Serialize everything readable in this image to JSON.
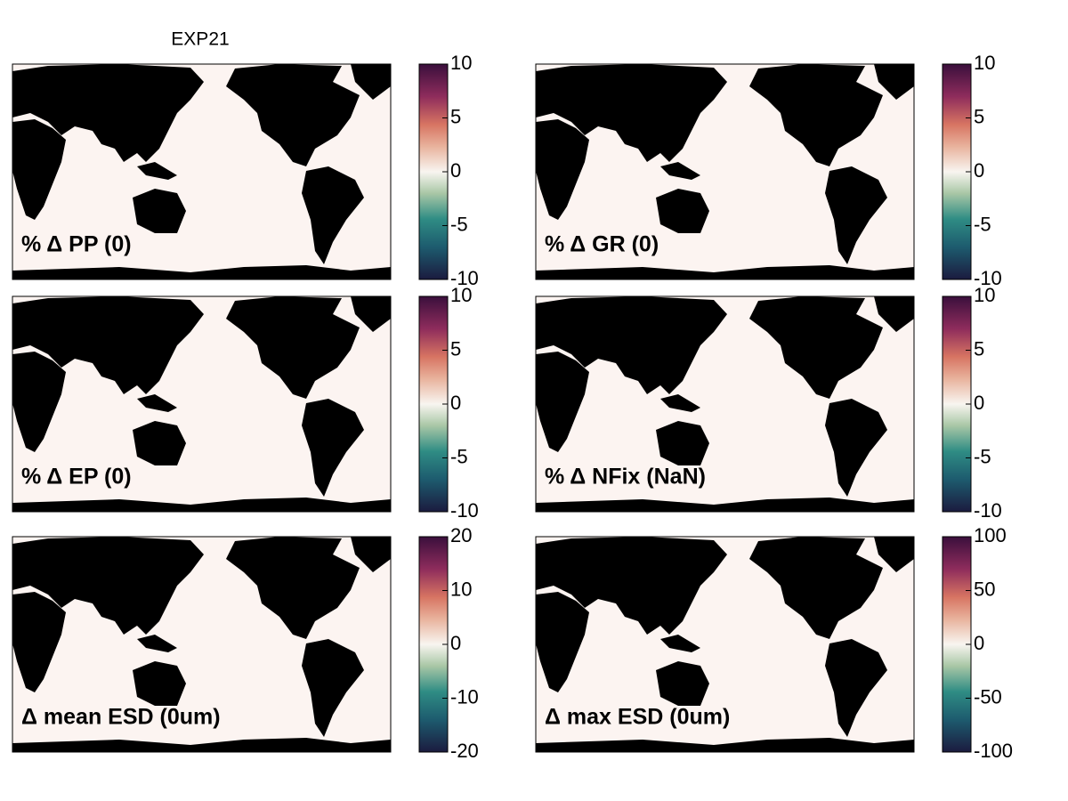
{
  "title": "EXP21",
  "panels": [
    {
      "label": "% Δ PP (0)",
      "colorbar": {
        "lim": [
          -10,
          10
        ],
        "ticks": [
          10,
          5,
          0,
          -5,
          -10
        ]
      }
    },
    {
      "label": "% Δ GR (0)",
      "colorbar": {
        "lim": [
          -10,
          10
        ],
        "ticks": [
          10,
          5,
          0,
          -5,
          -10
        ]
      }
    },
    {
      "label": "% Δ EP (0)",
      "colorbar": {
        "lim": [
          -10,
          10
        ],
        "ticks": [
          10,
          5,
          0,
          -5,
          -10
        ]
      }
    },
    {
      "label": "% Δ NFix (NaN)",
      "colorbar": {
        "lim": [
          -10,
          10
        ],
        "ticks": [
          10,
          5,
          0,
          -5,
          -10
        ]
      }
    },
    {
      "label": "Δ mean ESD (0um)",
      "colorbar": {
        "lim": [
          -20,
          20
        ],
        "ticks": [
          20,
          10,
          0,
          -10,
          -20
        ]
      }
    },
    {
      "label": "Δ max ESD (0um)",
      "colorbar": {
        "lim": [
          -100,
          100
        ],
        "ticks": [
          100,
          50,
          0,
          -50,
          -100
        ]
      }
    }
  ]
}
